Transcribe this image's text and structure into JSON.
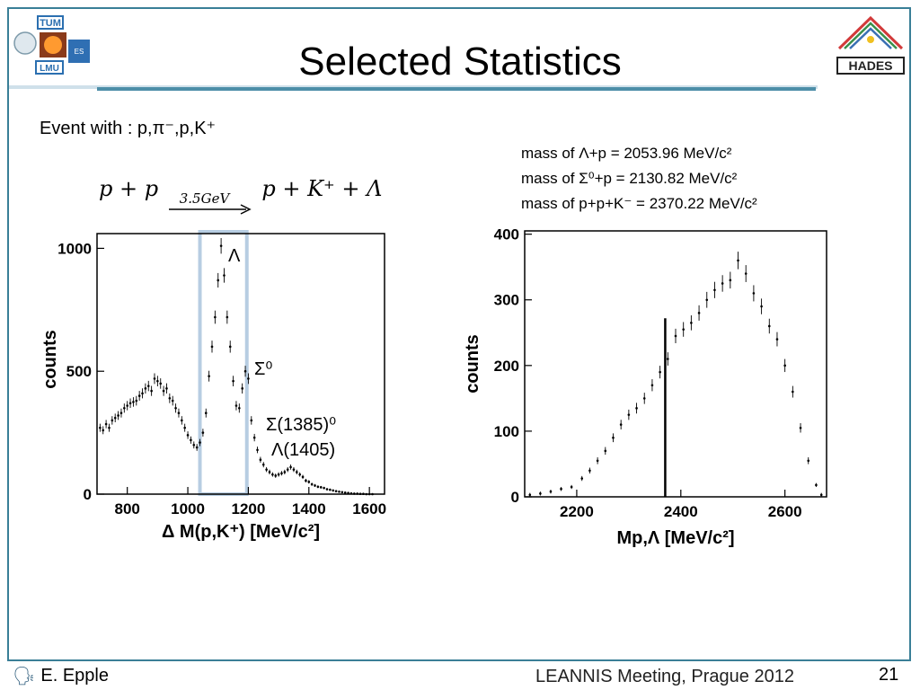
{
  "slide": {
    "title": "Selected Statistics",
    "event_line": "Event with : p,π⁻,p,K⁺",
    "masses": [
      "mass of Λ+p  = 2053.96 MeV/c²",
      "mass of Σ⁰+p = 2130.82 MeV/c²",
      "mass of p+p+K⁻ = 2370.22 MeV/c²"
    ],
    "reaction": {
      "left": "p + p",
      "energy": "3.5GeV",
      "right": "p + K⁺ + Λ"
    },
    "annotations": {
      "lambda": "Λ",
      "sigma0": "Σ⁰",
      "sigma1385": "Σ(1385)⁰",
      "lambda1405": "Λ(1405)"
    },
    "footer": {
      "author": "E. Epple",
      "meeting": "LEANNIS Meeting, Prague 2012",
      "page": "21"
    },
    "colors": {
      "frame": "#3a7f97",
      "highlight": "#b7cde2"
    }
  },
  "chart_data": [
    {
      "type": "scatter",
      "xlabel": "Δ M(p,K⁺)  [MeV/c²]",
      "ylabel": "counts",
      "xlim": [
        700,
        1650
      ],
      "ylim": [
        0,
        1060
      ],
      "xticks": [
        800,
        1000,
        1200,
        1400,
        1600
      ],
      "yticks": [
        0,
        500,
        1000
      ],
      "highlight_range": [
        1040,
        1195
      ],
      "x": [
        710,
        720,
        730,
        740,
        750,
        760,
        770,
        780,
        790,
        800,
        810,
        820,
        830,
        840,
        850,
        860,
        870,
        880,
        890,
        900,
        910,
        920,
        930,
        940,
        950,
        960,
        970,
        980,
        990,
        1000,
        1010,
        1020,
        1030,
        1040,
        1050,
        1060,
        1070,
        1080,
        1090,
        1100,
        1110,
        1120,
        1130,
        1140,
        1150,
        1160,
        1170,
        1180,
        1190,
        1200,
        1210,
        1220,
        1230,
        1240,
        1250,
        1260,
        1270,
        1280,
        1290,
        1300,
        1310,
        1320,
        1330,
        1340,
        1350,
        1360,
        1370,
        1380,
        1390,
        1400,
        1410,
        1420,
        1430,
        1440,
        1450,
        1460,
        1470,
        1480,
        1490,
        1500,
        1510,
        1520,
        1530,
        1540,
        1550,
        1560,
        1570,
        1580,
        1590,
        1600,
        1610
      ],
      "y": [
        270,
        260,
        285,
        270,
        300,
        310,
        320,
        330,
        350,
        360,
        370,
        375,
        380,
        400,
        410,
        430,
        440,
        420,
        470,
        460,
        450,
        420,
        430,
        390,
        380,
        350,
        330,
        300,
        270,
        240,
        220,
        200,
        190,
        210,
        250,
        330,
        480,
        600,
        720,
        870,
        1010,
        890,
        720,
        600,
        460,
        360,
        350,
        430,
        500,
        470,
        300,
        230,
        180,
        140,
        120,
        100,
        90,
        80,
        75,
        80,
        85,
        90,
        100,
        110,
        100,
        90,
        80,
        70,
        55,
        50,
        40,
        35,
        30,
        28,
        25,
        20,
        18,
        15,
        12,
        10,
        8,
        6,
        5,
        3,
        2,
        2,
        1,
        1,
        0,
        0,
        0
      ]
    },
    {
      "type": "scatter",
      "xlabel": "Mp,Λ [MeV/c²]",
      "ylabel": "counts",
      "xlim": [
        2100,
        2680
      ],
      "ylim": [
        0,
        405
      ],
      "xticks": [
        2200,
        2400,
        2600
      ],
      "yticks": [
        0,
        100,
        200,
        300,
        400
      ],
      "vertical_line_x": 2370,
      "x": [
        2110,
        2130,
        2150,
        2170,
        2190,
        2210,
        2225,
        2240,
        2255,
        2270,
        2285,
        2300,
        2315,
        2330,
        2345,
        2360,
        2375,
        2390,
        2405,
        2420,
        2435,
        2450,
        2465,
        2480,
        2495,
        2510,
        2525,
        2540,
        2555,
        2570,
        2585,
        2600,
        2615,
        2630,
        2645,
        2660,
        2670
      ],
      "y": [
        3,
        5,
        8,
        12,
        15,
        28,
        40,
        55,
        70,
        90,
        110,
        125,
        135,
        150,
        170,
        190,
        210,
        245,
        255,
        265,
        280,
        300,
        315,
        325,
        330,
        360,
        340,
        310,
        290,
        260,
        240,
        200,
        160,
        105,
        55,
        18,
        3
      ]
    }
  ]
}
